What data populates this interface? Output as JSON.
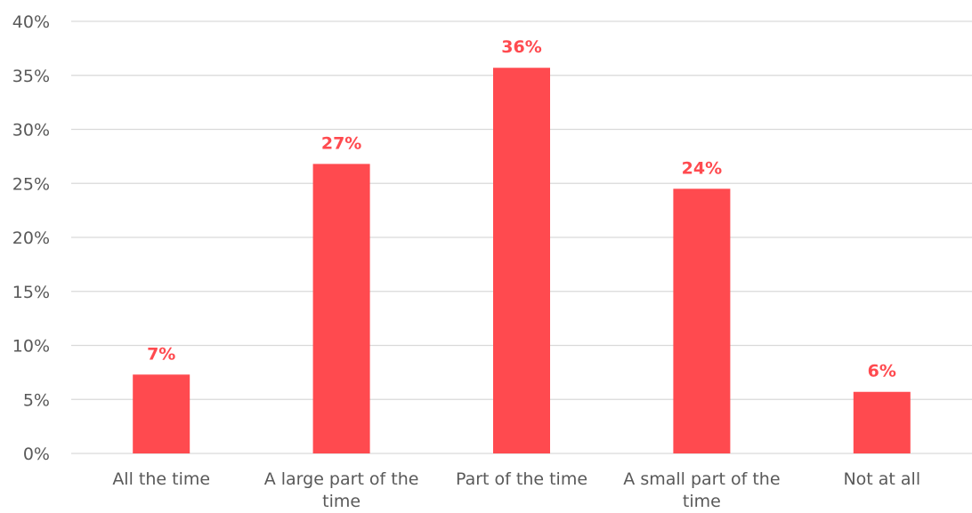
{
  "chart_data": {
    "type": "bar",
    "categories": [
      [
        "All the time"
      ],
      [
        "A large part of the",
        "time"
      ],
      [
        "Part of the time"
      ],
      [
        "A small part of the",
        "time"
      ],
      [
        "Not at all"
      ]
    ],
    "values": [
      7.3,
      26.8,
      35.7,
      24.5,
      5.7
    ],
    "data_labels": [
      "7%",
      "27%",
      "36%",
      "24%",
      "6%"
    ],
    "ylim": [
      0,
      40
    ],
    "yticks": [
      0,
      5,
      10,
      15,
      20,
      25,
      30,
      35,
      40
    ],
    "ytick_labels": [
      "0%",
      "5%",
      "10%",
      "15%",
      "20%",
      "25%",
      "30%",
      "35%",
      "40%"
    ],
    "grid": true,
    "legend": "none",
    "title": "",
    "xlabel": "",
    "ylabel": "",
    "bar_color": "#ff4a4f",
    "label_color": "#ff4a4f"
  }
}
